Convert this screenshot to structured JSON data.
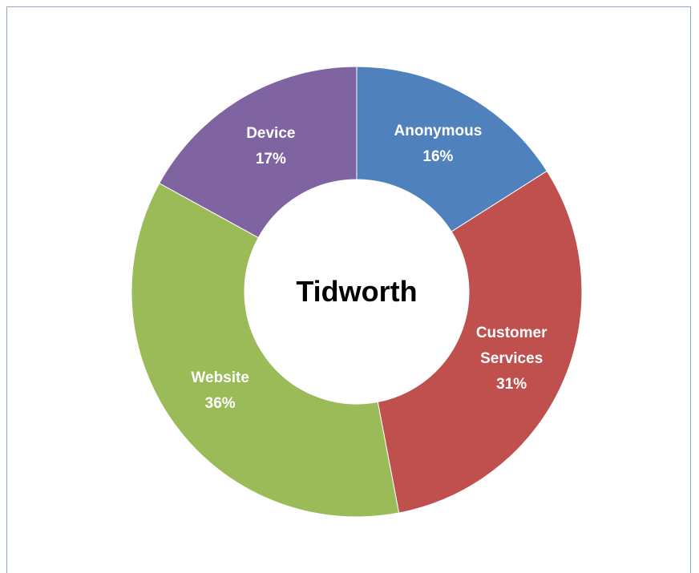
{
  "chart_data": {
    "type": "donut",
    "title": "Tidworth",
    "categories": [
      "Anonymous",
      "Customer Services",
      "Website",
      "Device"
    ],
    "values": [
      16,
      31,
      36,
      17
    ],
    "value_labels": [
      "16%",
      "31%",
      "36%",
      "17%"
    ],
    "colors": [
      "#4f81bd",
      "#c0504d",
      "#9bbb59",
      "#8064a2"
    ]
  }
}
